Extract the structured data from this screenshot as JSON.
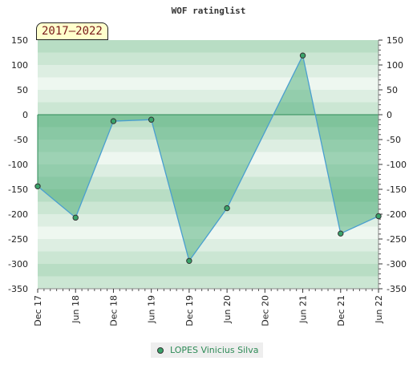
{
  "chart_data": {
    "type": "area",
    "title": "WOF ratinglist",
    "period_label": "2017–2022",
    "x_categories": [
      "Dec 17",
      "Jun 18",
      "Dec 18",
      "Jun 19",
      "Dec 19",
      "Jun 20",
      "Dec 20",
      "Jun 21",
      "Dec 21",
      "Jun 22"
    ],
    "ylim": [
      -350,
      150
    ],
    "y_ticks": [
      150,
      100,
      50,
      0,
      -50,
      -100,
      -150,
      -200,
      -250,
      -300,
      -350
    ],
    "series": [
      {
        "name": "LOPES Vinicius Silva",
        "color": "#3aa36a",
        "points": [
          {
            "x": "Dec 17",
            "y": -144
          },
          {
            "x": "Jun 18",
            "y": -207
          },
          {
            "x": "Dec 18",
            "y": -13
          },
          {
            "x": "Jun 19",
            "y": -10
          },
          {
            "x": "Dec 19",
            "y": -294
          },
          {
            "x": "Jun 20",
            "y": -188
          },
          {
            "x": "Jun 21",
            "y": 119
          },
          {
            "x": "Dec 21",
            "y": -239
          },
          {
            "x": "Jun 22",
            "y": -204
          }
        ]
      }
    ],
    "grid": true,
    "legend_position": "bottom"
  }
}
